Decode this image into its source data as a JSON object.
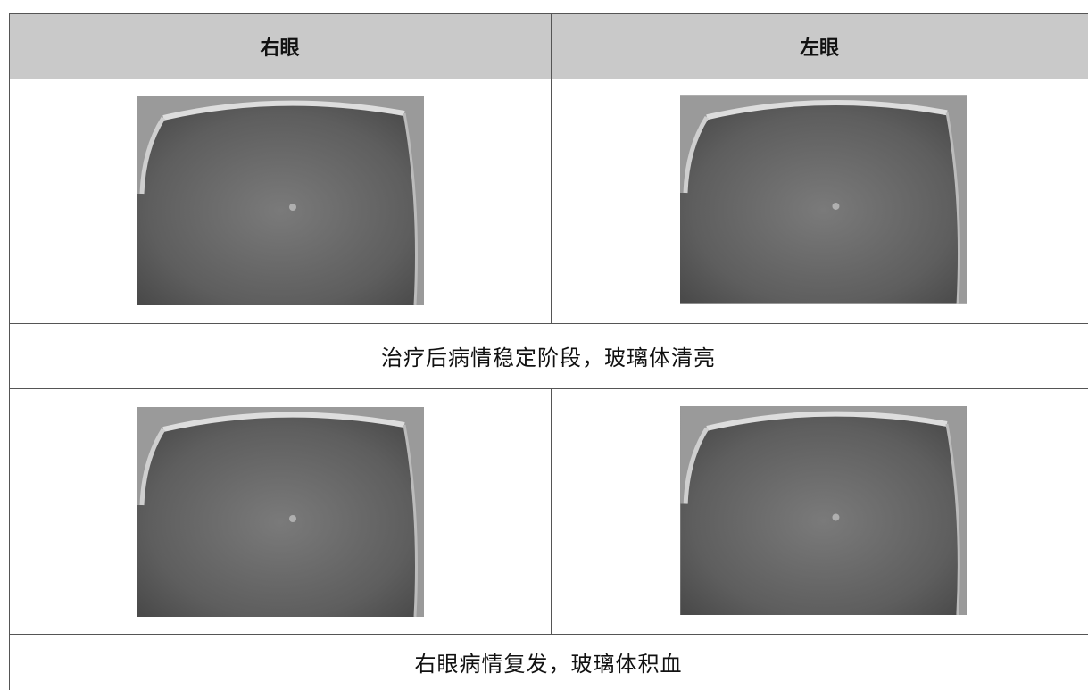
{
  "header": {
    "cells": [
      "右眼",
      "左眼"
    ]
  },
  "rows": [
    {
      "caption": "治疗后病情稳定阶段，玻璃体清亮"
    },
    {
      "caption": "右眼病情复发，玻璃体积血"
    }
  ]
}
